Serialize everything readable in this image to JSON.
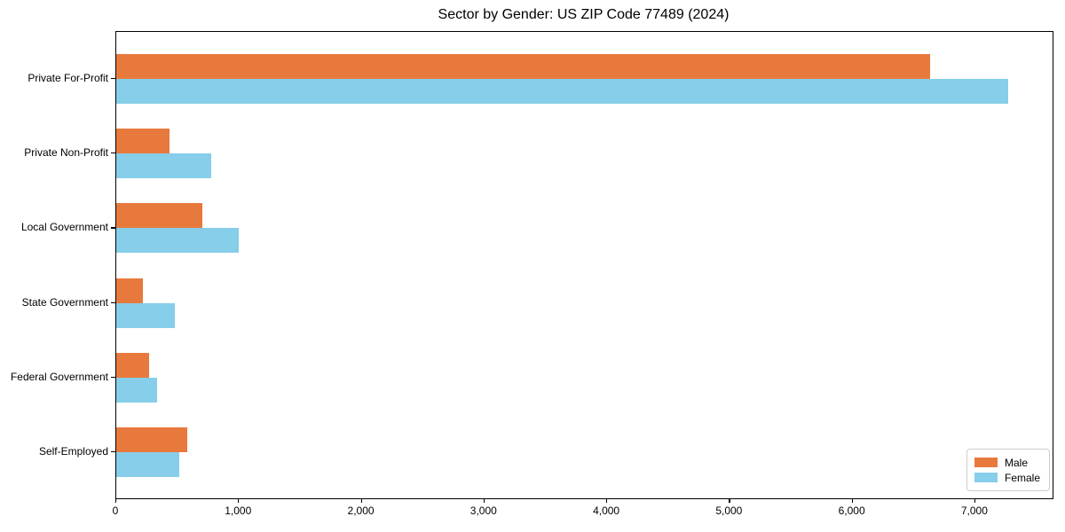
{
  "title": "Sector by Gender: US ZIP Code 77489 (2024)",
  "chart_data": {
    "type": "bar",
    "orientation": "horizontal",
    "title": "Sector by Gender: US ZIP Code 77489 (2024)",
    "categories": [
      "Private For-Profit",
      "Private Non-Profit",
      "Local Government",
      "State Government",
      "Federal Government",
      "Self-Employed"
    ],
    "series": [
      {
        "name": "Male",
        "color": "#e8793c",
        "values": [
          6630,
          430,
          700,
          220,
          265,
          580
        ]
      },
      {
        "name": "Female",
        "color": "#86cee9",
        "values": [
          7270,
          770,
          1000,
          480,
          330,
          510
        ]
      }
    ],
    "xlabel": "",
    "ylabel": "",
    "xlim": [
      0,
      7630
    ],
    "x_ticks": [
      0,
      1000,
      2000,
      3000,
      4000,
      5000,
      6000,
      7000
    ],
    "x_tick_labels": [
      "0",
      "1,000",
      "2,000",
      "3,000",
      "4,000",
      "5,000",
      "6,000",
      "7,000"
    ],
    "grid": false,
    "legend_position": "lower right"
  },
  "legend": {
    "items": [
      {
        "label": "Male",
        "color": "#e8793c"
      },
      {
        "label": "Female",
        "color": "#86cee9"
      }
    ]
  }
}
